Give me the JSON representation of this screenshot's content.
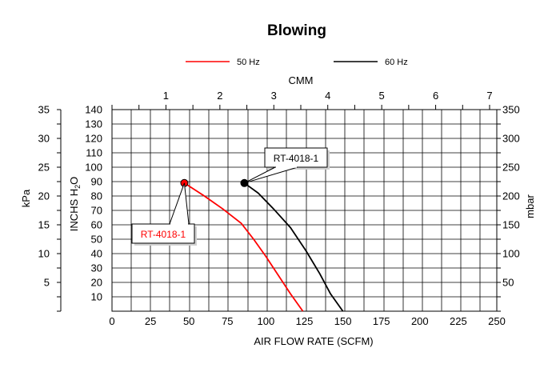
{
  "chart_data": {
    "type": "line",
    "title": "Blowing",
    "xlabel": "AIR FLOW RATE (SCFM)",
    "x2label": "CMM",
    "ylabel": "INCHS H",
    "ylabel_sub": "2",
    "ylabel_end": "O",
    "y_left_outer_label": "kPa",
    "y_right_label": "mbar",
    "xlim": [
      0,
      250
    ],
    "ylim": [
      0,
      140
    ],
    "x_ticks": [
      "0",
      "25",
      "50",
      "75",
      "100",
      "125",
      "150",
      "175",
      "200",
      "225",
      "250"
    ],
    "y_ticks": [
      "10",
      "20",
      "30",
      "40",
      "50",
      "60",
      "70",
      "80",
      "90",
      "100",
      "110",
      "120",
      "130",
      "140"
    ],
    "cmm_ticks": [
      "1",
      "2",
      "3",
      "4",
      "5",
      "6",
      "7"
    ],
    "kpa_ticks": [
      "5",
      "10",
      "15",
      "20",
      "25",
      "30",
      "35"
    ],
    "mbar_ticks": [
      "50",
      "100",
      "150",
      "200",
      "250",
      "300",
      "350"
    ],
    "grid": true,
    "legend_position": "top",
    "series": [
      {
        "name": "50 Hz",
        "color": "#ff0000",
        "x": [
          47,
          60,
          72,
          84,
          92,
          100,
          108,
          116,
          124
        ],
        "y": [
          89,
          80,
          71,
          61,
          50,
          38,
          25,
          12,
          0
        ],
        "annotation": "RT-4018-1"
      },
      {
        "name": "60 Hz",
        "color": "#000000",
        "x": [
          86,
          95,
          105,
          116,
          126,
          135,
          142,
          150
        ],
        "y": [
          89,
          82,
          71,
          58,
          42,
          26,
          12,
          0
        ],
        "annotation": "RT-4018-1"
      }
    ]
  }
}
